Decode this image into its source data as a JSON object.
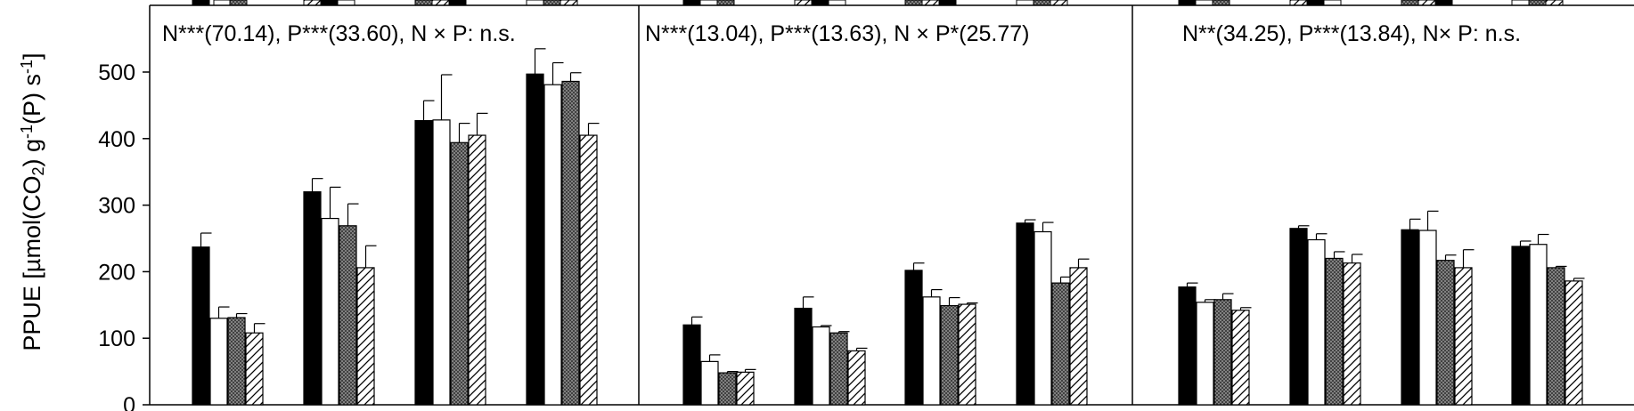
{
  "y_title": {
    "main": "PPUE [µmol(CO",
    "sub": "2",
    "mid": ") g",
    "sup1": "-1",
    "mid2": "(P) s",
    "sup2": "-1",
    "end": "]"
  },
  "chart_data": {
    "type": "bar",
    "ylim": [
      0,
      500
    ],
    "yticks": [
      0,
      100,
      200,
      300,
      400,
      500
    ],
    "ylabel": "PPUE [µmol(CO2) g-1(P) s-1]",
    "grid": false,
    "legend": "none",
    "series_styles": [
      {
        "fill": "#000000",
        "pattern": "solid"
      },
      {
        "fill": "#ffffff",
        "pattern": "open"
      },
      {
        "fill": "#8c8c8c",
        "pattern": "crosshatch"
      },
      {
        "fill": "#ffffff",
        "pattern": "diagonal"
      }
    ],
    "panels": [
      {
        "annotation": "N***(70.14), P***(33.60), N × P: n.s.",
        "groups": [
          {
            "values": [
              237,
              130,
              131,
              108
            ],
            "errors": [
              21,
              17,
              6,
              14
            ]
          },
          {
            "values": [
              320,
              280,
              269,
              206
            ],
            "errors": [
              20,
              47,
              33,
              33
            ]
          },
          {
            "values": [
              427,
              428,
              394,
              405
            ],
            "errors": [
              30,
              68,
              29,
              33
            ]
          },
          {
            "values": [
              497,
              481,
              486,
              405
            ],
            "errors": [
              38,
              33,
              13,
              18
            ]
          }
        ]
      },
      {
        "annotation": "N***(13.04), P***(13.63), N × P*(25.77)",
        "groups": [
          {
            "values": [
              120,
              65,
              48,
              49
            ],
            "errors": [
              12,
              10,
              2,
              4
            ]
          },
          {
            "values": [
              145,
              117,
              108,
              81
            ],
            "errors": [
              17,
              2,
              2,
              4
            ]
          },
          {
            "values": [
              202,
              162,
              149,
              151
            ],
            "errors": [
              11,
              11,
              12,
              2
            ]
          },
          {
            "values": [
              273,
              260,
              183,
              206
            ],
            "errors": [
              5,
              14,
              9,
              13
            ]
          }
        ]
      },
      {
        "annotation": "N**(34.25), P***(13.84), N× P: n.s.",
        "groups": [
          {
            "values": [
              177,
              154,
              158,
              142
            ],
            "errors": [
              6,
              4,
              9,
              4
            ]
          },
          {
            "values": [
              265,
              248,
              220,
              213
            ],
            "errors": [
              4,
              9,
              10,
              13
            ]
          },
          {
            "values": [
              263,
              262,
              217,
              206
            ],
            "errors": [
              16,
              29,
              8,
              27
            ]
          },
          {
            "values": [
              238,
              241,
              206,
              186
            ],
            "errors": [
              8,
              15,
              2,
              4
            ]
          }
        ]
      }
    ]
  }
}
